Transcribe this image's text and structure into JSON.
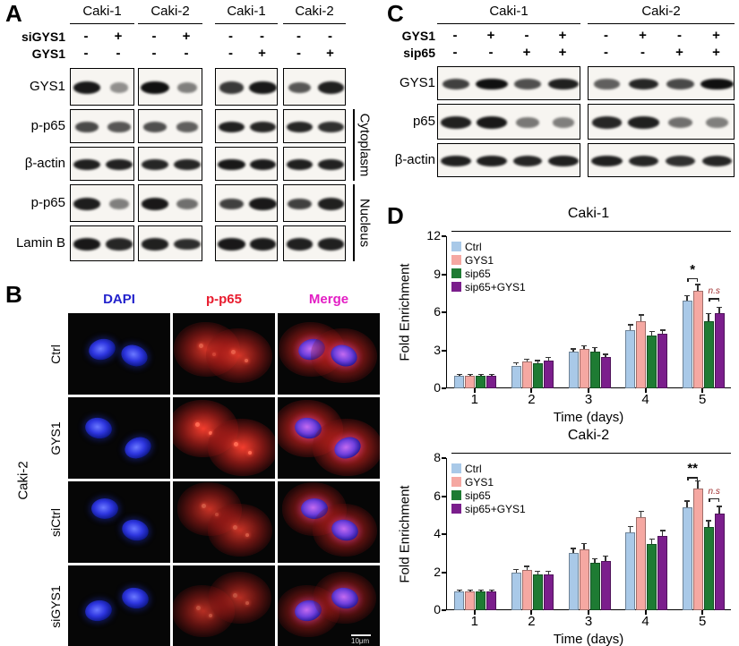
{
  "colors": {
    "ctrl": "#a9c9e8",
    "gys1": "#f5a8a2",
    "sip65": "#1e7b33",
    "sip65_gys1": "#7b1e8c",
    "dapi": "#2222cc",
    "pp65": "#e81c2e",
    "merge": "#e31ec4",
    "ns_text": "#a03030"
  },
  "panel_a": {
    "label": "A",
    "col_groups": [
      "Caki-1",
      "Caki-2",
      "Caki-1",
      "Caki-2"
    ],
    "treatments": [
      {
        "label": "siGYS1",
        "values": [
          "-",
          "+",
          "-",
          "+",
          "-",
          "-",
          "-",
          "-"
        ]
      },
      {
        "label": "GYS1",
        "values": [
          "-",
          "-",
          "-",
          "-",
          "-",
          "+",
          "-",
          "+"
        ]
      }
    ],
    "blots": [
      {
        "label": "GYS1",
        "bands": [
          [
            0.95,
            0.2
          ],
          [
            1.0,
            0.3
          ],
          [
            0.75,
            0.95
          ],
          [
            0.55,
            0.9
          ]
        ]
      },
      {
        "label": "p-p65",
        "bands": [
          [
            0.65,
            0.55
          ],
          [
            0.6,
            0.5
          ],
          [
            0.9,
            0.85
          ],
          [
            0.85,
            0.8
          ]
        ]
      },
      {
        "label": "β-actin",
        "bands": [
          [
            0.9,
            0.88
          ],
          [
            0.86,
            0.85
          ],
          [
            0.95,
            0.93
          ],
          [
            0.9,
            0.88
          ]
        ]
      },
      {
        "label": "p-p65",
        "bands": [
          [
            0.92,
            0.3
          ],
          [
            0.95,
            0.4
          ],
          [
            0.7,
            0.95
          ],
          [
            0.7,
            0.9
          ]
        ]
      },
      {
        "label": "Lamin B",
        "bands": [
          [
            0.95,
            0.85
          ],
          [
            0.9,
            0.82
          ],
          [
            0.95,
            0.93
          ],
          [
            0.9,
            0.9
          ]
        ]
      }
    ],
    "side_brackets": [
      {
        "label": "Cytoplasm",
        "rows": [
          1,
          2
        ]
      },
      {
        "label": "Nucleus",
        "rows": [
          3,
          4
        ]
      }
    ]
  },
  "panel_b": {
    "label": "B",
    "col_headers": [
      "DAPI",
      "p-p65",
      "Merge"
    ],
    "row_labels": [
      "Ctrl",
      "GYS1",
      "siCtrl",
      "siGYS1"
    ],
    "side_label": "Caki-2",
    "scale_bar": "10μm",
    "red_intensity": [
      0.75,
      1.0,
      0.65,
      0.5
    ]
  },
  "panel_c": {
    "label": "C",
    "col_groups": [
      "Caki-1",
      "Caki-2"
    ],
    "treatments": [
      {
        "label": "GYS1",
        "values": [
          "-",
          "+",
          "-",
          "+",
          "-",
          "+",
          "-",
          "+"
        ]
      },
      {
        "label": "sip65",
        "values": [
          "-",
          "-",
          "+",
          "+",
          "-",
          "-",
          "+",
          "+"
        ]
      }
    ],
    "blots": [
      {
        "label": "GYS1",
        "bands": [
          [
            0.7,
            1.0,
            0.6,
            0.9
          ],
          [
            0.5,
            0.85,
            0.65,
            1.0
          ]
        ]
      },
      {
        "label": "p65",
        "bands": [
          [
            0.9,
            0.95,
            0.35,
            0.3
          ],
          [
            0.85,
            0.9,
            0.4,
            0.3
          ]
        ]
      },
      {
        "label": "β-actin",
        "bands": [
          [
            0.9,
            0.9,
            0.85,
            0.9
          ],
          [
            0.9,
            0.85,
            0.8,
            0.85
          ]
        ]
      }
    ]
  },
  "panel_d": {
    "label": "D"
  },
  "chart_data": [
    {
      "type": "bar",
      "title": "Caki-1",
      "xlabel": "Time (days)",
      "ylabel": "Fold Enrichment",
      "ylim": [
        0,
        12
      ],
      "yticks": [
        0,
        3,
        6,
        9,
        12
      ],
      "categories": [
        "1",
        "2",
        "3",
        "4",
        "5"
      ],
      "legend_position": "top-left",
      "grid": false,
      "series": [
        {
          "name": "Ctrl",
          "color_key": "ctrl",
          "values": [
            1.0,
            1.8,
            2.9,
            4.6,
            6.9
          ],
          "errors": [
            0.08,
            0.2,
            0.2,
            0.4,
            0.4
          ]
        },
        {
          "name": "GYS1",
          "color_key": "gys1",
          "values": [
            1.0,
            2.1,
            3.1,
            5.3,
            7.7
          ],
          "errors": [
            0.08,
            0.2,
            0.25,
            0.5,
            0.5
          ]
        },
        {
          "name": "sip65",
          "color_key": "sip65",
          "values": [
            1.0,
            2.0,
            2.9,
            4.2,
            5.3
          ],
          "errors": [
            0.08,
            0.2,
            0.3,
            0.3,
            0.6
          ]
        },
        {
          "name": "sip65+GYS1",
          "color_key": "sip65_gys1",
          "values": [
            1.0,
            2.2,
            2.5,
            4.3,
            5.9
          ],
          "errors": [
            0.08,
            0.25,
            0.2,
            0.3,
            0.5
          ]
        }
      ],
      "annotations": [
        {
          "text": "*",
          "group": 4,
          "from": 0,
          "to": 1,
          "y": 8.7,
          "style": "sig"
        },
        {
          "text": "n.s",
          "group": 4,
          "from": 2,
          "to": 3,
          "y": 7.1,
          "style": "ns"
        }
      ]
    },
    {
      "type": "bar",
      "title": "Caki-2",
      "xlabel": "Time (days)",
      "ylabel": "Fold Enrichment",
      "ylim": [
        0,
        8
      ],
      "yticks": [
        0,
        2,
        4,
        6,
        8
      ],
      "categories": [
        "1",
        "2",
        "3",
        "4",
        "5"
      ],
      "legend_position": "top-left",
      "grid": false,
      "series": [
        {
          "name": "Ctrl",
          "color_key": "ctrl",
          "values": [
            1.0,
            2.0,
            3.0,
            4.1,
            5.4
          ],
          "errors": [
            0.05,
            0.15,
            0.25,
            0.3,
            0.35
          ]
        },
        {
          "name": "GYS1",
          "color_key": "gys1",
          "values": [
            1.0,
            2.1,
            3.2,
            4.9,
            6.4
          ],
          "errors": [
            0.05,
            0.2,
            0.3,
            0.3,
            0.4
          ]
        },
        {
          "name": "sip65",
          "color_key": "sip65",
          "values": [
            1.0,
            1.9,
            2.5,
            3.5,
            4.4
          ],
          "errors": [
            0.05,
            0.15,
            0.2,
            0.25,
            0.3
          ]
        },
        {
          "name": "sip65+GYS1",
          "color_key": "sip65_gys1",
          "values": [
            1.0,
            1.9,
            2.6,
            3.9,
            5.1
          ],
          "errors": [
            0.05,
            0.15,
            0.25,
            0.3,
            0.35
          ]
        }
      ],
      "annotations": [
        {
          "text": "**",
          "group": 4,
          "from": 0,
          "to": 1,
          "y": 7.0,
          "style": "sig"
        },
        {
          "text": "n.s",
          "group": 4,
          "from": 2,
          "to": 3,
          "y": 5.9,
          "style": "ns"
        }
      ]
    }
  ]
}
